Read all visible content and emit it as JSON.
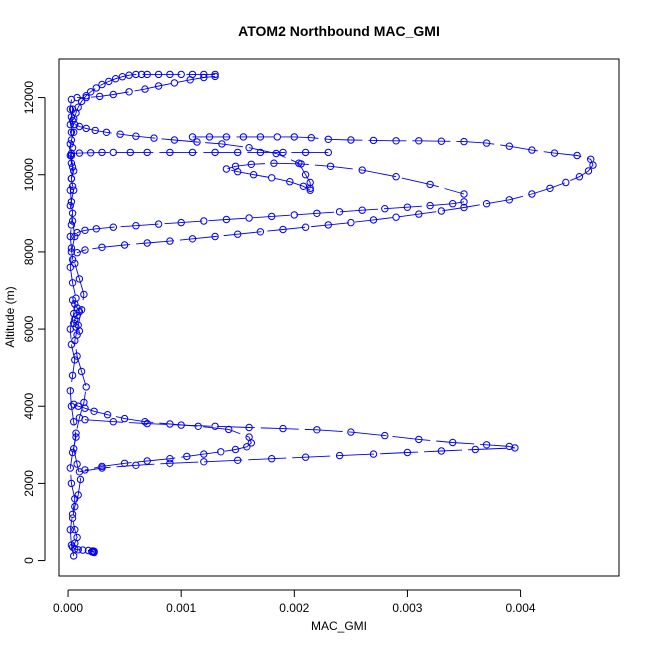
{
  "chart_data": {
    "type": "scatter",
    "title": "ATOM2 Northbound MAC_GMI",
    "xlabel": "MAC_GMI",
    "ylabel": "Altitude (m)",
    "xlim": [
      -8e-05,
      0.00487
    ],
    "ylim": [
      -400,
      13000
    ],
    "x_ticks": [
      0.0,
      0.001,
      0.002,
      0.003,
      0.004
    ],
    "x_tick_labels": [
      "0.000",
      "0.001",
      "0.002",
      "0.003",
      "0.004"
    ],
    "y_ticks": [
      0,
      2000,
      4000,
      6000,
      8000,
      10000,
      12000
    ],
    "y_tick_labels": [
      "0",
      "2000",
      "4000",
      "6000",
      "8000",
      "10000",
      "12000"
    ],
    "grid": false,
    "legend": "none",
    "marker": "open circle",
    "line_style": "dashed",
    "color": "#0000ee",
    "segments": [
      {
        "x": [
          5e-05,
          3e-05,
          2e-05,
          4e-05,
          6e-05,
          3e-05,
          2e-05,
          4e-05,
          7e-05,
          5e-05,
          3e-05,
          2e-05,
          4e-05,
          6e-05,
          3e-05,
          2e-05,
          5e-05,
          7e-05,
          4e-05,
          2e-05,
          3e-05,
          6e-05,
          4e-05,
          2e-05,
          5e-05
        ],
        "y": [
          120,
          400,
          800,
          1200,
          1600,
          2000,
          2400,
          2800,
          3200,
          3600,
          4000,
          4400,
          4800,
          5200,
          5600,
          6000,
          6400,
          6800,
          7200,
          7600,
          8000,
          8400,
          8800,
          9200,
          9600
        ]
      },
      {
        "x": [
          4e-05,
          3e-05,
          5e-05,
          3e-05,
          2e-05,
          4e-05,
          3e-05,
          5e-05,
          2e-05,
          3e-05,
          4e-05,
          3e-05,
          2e-05,
          4e-05,
          3e-05,
          2e-05,
          3e-05,
          4e-05,
          3e-05,
          2e-05,
          3e-05,
          4e-05,
          3e-05,
          2e-05,
          3e-05,
          4e-05
        ],
        "y": [
          9700,
          9900,
          10100,
          10300,
          10500,
          10700,
          10900,
          11100,
          11300,
          11500,
          11700,
          11950,
          11700,
          11400,
          11100,
          10800,
          10500,
          10200,
          9900,
          9600,
          9300,
          9000,
          8700,
          8400,
          8100,
          7800
        ]
      },
      {
        "x": [
          6e-05,
          0.0001,
          0.00014,
          0.00012,
          9e-05,
          6e-05,
          8e-05,
          0.00012,
          0.00016,
          0.00014,
          0.0001,
          7e-05,
          5e-05,
          8e-05,
          0.00011,
          9e-05,
          6e-05,
          4e-05,
          6e-05,
          8e-05,
          6e-05,
          4e-05,
          6e-05,
          9e-05,
          0.00013,
          0.00018,
          0.00022,
          0.00023,
          0.00021,
          0.00022,
          0.00023
        ],
        "y": [
          7700,
          7300,
          6900,
          6500,
          6100,
          5700,
          5300,
          4900,
          4500,
          4100,
          3700,
          3300,
          2900,
          2500,
          2100,
          1700,
          1400,
          1100,
          800,
          600,
          450,
          350,
          300,
          280,
          270,
          260,
          250,
          240,
          230,
          220,
          210
        ]
      },
      {
        "x": [
          5e-05,
          7e-05,
          9e-05,
          0.00012,
          0.00016,
          0.0002,
          0.00025,
          0.0003,
          0.00036,
          0.00042,
          0.00048,
          0.00054,
          0.0006,
          0.00065,
          0.0007,
          0.0008,
          0.0009,
          0.001,
          0.0011,
          0.0012,
          0.0013
        ],
        "y": [
          11450,
          11600,
          11750,
          11900,
          12050,
          12150,
          12250,
          12340,
          12420,
          12490,
          12540,
          12580,
          12600,
          12600,
          12600,
          12600,
          12600,
          12600,
          12600,
          12600,
          12600
        ]
      },
      {
        "x": [
          0.0013,
          0.0012,
          0.00108,
          0.00094,
          0.0008,
          0.00068,
          0.00054,
          0.0004,
          0.00028,
          0.00016,
          8e-05
        ],
        "y": [
          12550,
          12520,
          12460,
          12380,
          12300,
          12220,
          12150,
          12080,
          12030,
          12000,
          12000
        ]
      },
      {
        "x": [
          6e-05,
          0.0001,
          0.00016,
          0.00024,
          0.00034,
          0.00046,
          0.0006,
          0.00076,
          0.00094,
          0.00114,
          0.00136,
          0.0016,
          0.00184,
          0.00204,
          0.0021,
          0.00214,
          0.00214
        ],
        "y": [
          11300,
          11250,
          11200,
          11150,
          11100,
          11050,
          11000,
          10950,
          10900,
          10850,
          10800,
          10700,
          10550,
          10300,
          10000,
          9800,
          9650
        ]
      },
      {
        "x": [
          0.00214,
          0.00208,
          0.00196,
          0.0018,
          0.00164,
          0.0015,
          0.0014,
          0.00148,
          0.00162,
          0.00182,
          0.00206,
          0.00232,
          0.0026,
          0.0029,
          0.0032,
          0.0035
        ],
        "y": [
          9600,
          9700,
          9820,
          9920,
          10000,
          10080,
          10150,
          10220,
          10270,
          10300,
          10280,
          10220,
          10120,
          9950,
          9750,
          9500
        ]
      },
      {
        "x": [
          3e-05,
          0.0001,
          0.0002,
          0.0003,
          0.0004,
          0.00055,
          0.0007,
          0.0009,
          0.0011,
          0.0013,
          0.0015,
          0.0017,
          0.0019,
          0.0021,
          0.0023
        ],
        "y": [
          10550,
          10560,
          10570,
          10580,
          10580,
          10580,
          10580,
          10580,
          10580,
          10580,
          10580,
          10580,
          10580,
          10580,
          10580
        ]
      },
      {
        "x": [
          0.0011,
          0.00125,
          0.0014,
          0.00155,
          0.0017,
          0.00185,
          0.002,
          0.00215,
          0.0023,
          0.0025,
          0.0027,
          0.0029,
          0.0031,
          0.0033,
          0.0035,
          0.0037,
          0.0039,
          0.0041,
          0.0043,
          0.0045,
          0.00462,
          0.00464,
          0.0046,
          0.00452,
          0.0044,
          0.00426,
          0.0041,
          0.0039,
          0.0037,
          0.0035,
          0.0033,
          0.0031,
          0.0029,
          0.0027,
          0.0025,
          0.0023,
          0.0021,
          0.0019,
          0.0017,
          0.0015,
          0.0013,
          0.0011,
          0.0009,
          0.0007,
          0.0005,
          0.0003,
          0.00015,
          8e-05
        ],
        "y": [
          10980,
          10980,
          10980,
          10980,
          10980,
          10980,
          10980,
          10960,
          10920,
          10900,
          10890,
          10880,
          10880,
          10870,
          10860,
          10820,
          10740,
          10640,
          10560,
          10500,
          10400,
          10250,
          10100,
          9950,
          9800,
          9650,
          9500,
          9350,
          9250,
          9150,
          9060,
          8980,
          8900,
          8830,
          8760,
          8700,
          8640,
          8580,
          8520,
          8460,
          8400,
          8340,
          8280,
          8230,
          8180,
          8120,
          8050,
          7980
        ]
      },
      {
        "x": [
          8e-05,
          0.00015,
          0.00025,
          0.0004,
          0.0006,
          0.0008,
          0.001,
          0.0012,
          0.0014,
          0.0016,
          0.0018,
          0.002,
          0.0022,
          0.0024,
          0.0026,
          0.0028,
          0.003,
          0.0032,
          0.0034,
          0.0035
        ],
        "y": [
          8500,
          8560,
          8600,
          8640,
          8680,
          8720,
          8760,
          8800,
          8840,
          8880,
          8920,
          8960,
          9000,
          9040,
          9080,
          9120,
          9160,
          9200,
          9250,
          9300
        ]
      },
      {
        "x": [
          5e-05,
          9e-05,
          0.00015,
          0.00023,
          0.00035,
          0.0005,
          0.00068,
          0.0009,
          0.00115,
          0.00142,
          0.0016,
          0.00162,
          0.00158,
          0.00148,
          0.00135,
          0.0012,
          0.00105,
          0.0009,
          0.0007,
          0.0005,
          0.0003,
          0.00015
        ],
        "y": [
          4050,
          4000,
          3950,
          3870,
          3780,
          3680,
          3600,
          3540,
          3480,
          3400,
          3200,
          3050,
          2950,
          2880,
          2820,
          2760,
          2700,
          2640,
          2580,
          2520,
          2440,
          2350
        ]
      },
      {
        "x": [
          0.00015,
          0.0004,
          0.0007,
          0.001,
          0.0013,
          0.0016,
          0.0019,
          0.0022,
          0.0025,
          0.0028,
          0.0031,
          0.0034,
          0.0037,
          0.0039,
          0.00395,
          0.0036,
          0.0033,
          0.003,
          0.0027,
          0.0024,
          0.0021,
          0.0018,
          0.0015,
          0.0012,
          0.0009,
          0.0006,
          0.0003,
          0.0001
        ],
        "y": [
          3650,
          3600,
          3550,
          3510,
          3480,
          3450,
          3420,
          3390,
          3330,
          3240,
          3140,
          3060,
          3000,
          2960,
          2920,
          2880,
          2840,
          2800,
          2760,
          2720,
          2680,
          2640,
          2600,
          2560,
          2520,
          2470,
          2400,
          2300
        ]
      },
      {
        "x": [
          4e-05,
          6e-05,
          8e-05,
          0.0001,
          8e-05,
          6e-05,
          5e-05,
          7e-05,
          0.0001,
          8e-05
        ],
        "y": [
          6750,
          6650,
          6550,
          6450,
          6350,
          6250,
          6150,
          6050,
          5950,
          5850
        ]
      }
    ]
  }
}
